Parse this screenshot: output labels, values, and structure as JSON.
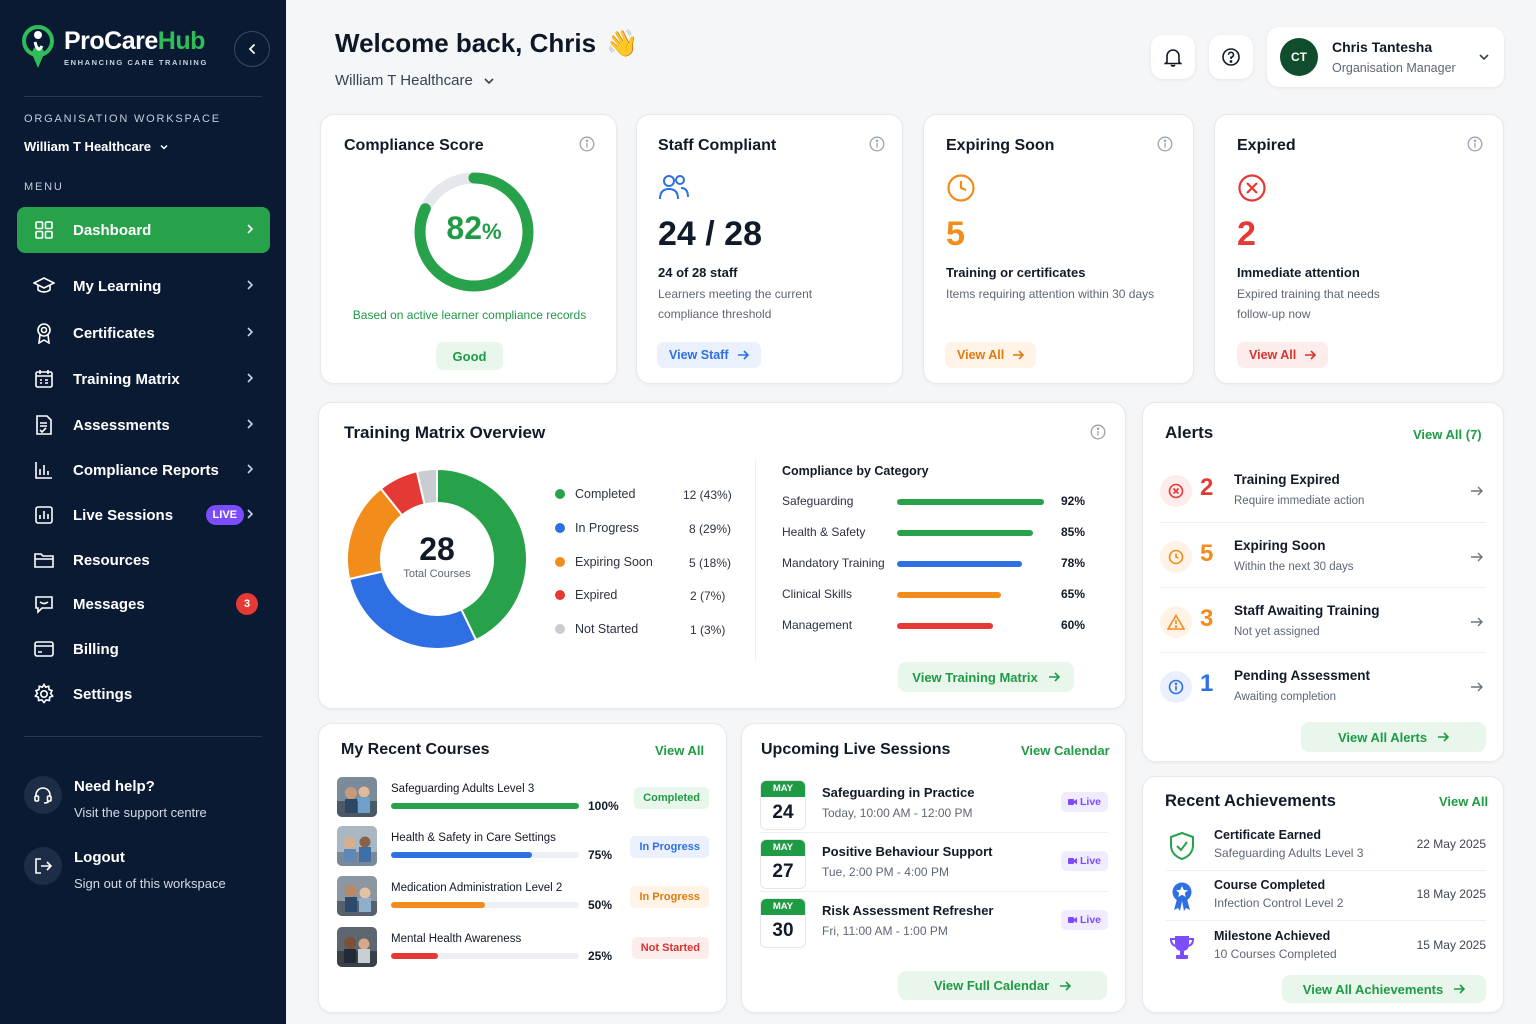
{
  "brand": {
    "name_part1": "ProCare",
    "name_part2": "Hub",
    "tagline": "ENHANCING CARE TRAINING",
    "color_primary": "#27a24a",
    "color_sidebar": "#0a1a33"
  },
  "sidebar": {
    "workspace_label": "ORGANISATION WORKSPACE",
    "workspace_name": "William T Healthcare",
    "menu_label": "MENU",
    "items": [
      {
        "label": "Dashboard",
        "icon": "grid-icon"
      },
      {
        "label": "My Learning",
        "icon": "graduation-cap-icon"
      },
      {
        "label": "Certificates",
        "icon": "award-icon"
      },
      {
        "label": "Training Matrix",
        "icon": "calendar-grid-icon"
      },
      {
        "label": "Assessments",
        "icon": "document-check-icon"
      },
      {
        "label": "Compliance Reports",
        "icon": "bar-chart-icon"
      },
      {
        "label": "Live Sessions",
        "icon": "live-chart-icon",
        "badge": "LIVE"
      },
      {
        "label": "Resources",
        "icon": "folder-icon"
      },
      {
        "label": "Messages",
        "icon": "message-icon",
        "badge": "3"
      },
      {
        "label": "Billing",
        "icon": "credit-card-icon"
      },
      {
        "label": "Settings",
        "icon": "gear-icon"
      }
    ],
    "help": {
      "title": "Need help?",
      "subtitle": "Visit the support centre"
    },
    "logout": {
      "title": "Logout",
      "subtitle": "Sign out of this workspace"
    }
  },
  "header": {
    "welcome": "Welcome back, Chris",
    "wave": "👋",
    "org": "William T Healthcare",
    "user": {
      "initials": "CT",
      "name": "Chris Tantesha",
      "role": "Organisation Manager"
    }
  },
  "kpis": {
    "compliance": {
      "title": "Compliance Score",
      "value": "82",
      "unit": "%",
      "fraction": 0.82,
      "note": "Based on active learner compliance records",
      "status": "Good"
    },
    "staff": {
      "title": "Staff Compliant",
      "value": "24 / 28",
      "sub": "24 of 28 staff",
      "desc": "Learners meeting the current compliance threshold",
      "button": "View Staff"
    },
    "expiring": {
      "title": "Expiring Soon",
      "value": "5",
      "sub": "Training or certificates",
      "desc": "Items requiring attention within 30 days",
      "button": "View All",
      "color": "#f28c1b"
    },
    "expired": {
      "title": "Expired",
      "value": "2",
      "sub": "Immediate attention",
      "desc": "Expired training that needs follow-up now",
      "button": "View All",
      "color": "#e53935"
    }
  },
  "matrix": {
    "title": "Training Matrix Overview",
    "total": "28",
    "total_label": "Total Courses",
    "legend": [
      {
        "label": "Completed",
        "value": "12 (43%)",
        "count": 12,
        "color": "#27a24a"
      },
      {
        "label": "In Progress",
        "value": "8 (29%)",
        "count": 8,
        "color": "#2f6fe4"
      },
      {
        "label": "Expiring Soon",
        "value": "5 (18%)",
        "count": 5,
        "color": "#f28c1b"
      },
      {
        "label": "Expired",
        "value": "2 (7%)",
        "count": 2,
        "color": "#e53935"
      },
      {
        "label": "Not Started",
        "value": "1 (3%)",
        "count": 1,
        "color": "#c9ccd1"
      }
    ],
    "category_title": "Compliance by Category",
    "categories": [
      {
        "name": "Safeguarding",
        "pct": "92%",
        "value": 92,
        "color": "#27a24a"
      },
      {
        "name": "Health & Safety",
        "pct": "85%",
        "value": 85,
        "color": "#27a24a"
      },
      {
        "name": "Mandatory Training",
        "pct": "78%",
        "value": 78,
        "color": "#2f6fe4"
      },
      {
        "name": "Clinical Skills",
        "pct": "65%",
        "value": 65,
        "color": "#f28c1b"
      },
      {
        "name": "Management",
        "pct": "60%",
        "value": 60,
        "color": "#e53935"
      }
    ],
    "button": "View Training Matrix"
  },
  "alerts": {
    "title": "Alerts",
    "view_all": "View All (7)",
    "items": [
      {
        "count": "2",
        "title": "Training Expired",
        "sub": "Require immediate action",
        "color": "#e53935",
        "bg": "#fdecec",
        "icon": "x-circle-icon"
      },
      {
        "count": "5",
        "title": "Expiring Soon",
        "sub": "Within the next 30 days",
        "color": "#f28c1b",
        "bg": "#fef3e6",
        "icon": "clock-icon"
      },
      {
        "count": "3",
        "title": "Staff Awaiting Training",
        "sub": "Not yet assigned",
        "color": "#f28c1b",
        "bg": "#fef3e6",
        "icon": "warning-icon"
      },
      {
        "count": "1",
        "title": "Pending Assessment",
        "sub": "Awaiting completion",
        "color": "#2f6fe4",
        "bg": "#eaf1fd",
        "icon": "info-icon"
      }
    ],
    "button": "View All Alerts"
  },
  "courses": {
    "title": "My Recent Courses",
    "view_all": "View All",
    "items": [
      {
        "name": "Safeguarding Adults Level 3",
        "pct": "100%",
        "value": 100,
        "color": "#27a24a",
        "status": "Completed",
        "status_color": "#1f9a45",
        "status_bg": "#e8f6ec"
      },
      {
        "name": "Health & Safety in Care Settings",
        "pct": "75%",
        "value": 75,
        "color": "#2f6fe4",
        "status": "In Progress",
        "status_color": "#2f6fe4",
        "status_bg": "#eaf1fd"
      },
      {
        "name": "Medication Administration Level 2",
        "pct": "50%",
        "value": 50,
        "color": "#f28c1b",
        "status": "In Progress",
        "status_color": "#e07a0c",
        "status_bg": "#fef3e6"
      },
      {
        "name": "Mental Health Awareness",
        "pct": "25%",
        "value": 25,
        "color": "#e53935",
        "status": "Not Started",
        "status_color": "#d63431",
        "status_bg": "#fdecec"
      }
    ]
  },
  "sessions": {
    "title": "Upcoming Live Sessions",
    "view_all": "View Calendar",
    "items": [
      {
        "month": "MAY",
        "day": "24",
        "title": "Safeguarding in Practice",
        "time": "Today, 10:00 AM - 12:00 PM",
        "badge": "Live"
      },
      {
        "month": "MAY",
        "day": "27",
        "title": "Positive Behaviour Support",
        "time": "Tue, 2:00 PM - 4:00 PM",
        "badge": "Live"
      },
      {
        "month": "MAY",
        "day": "30",
        "title": "Risk Assessment Refresher",
        "time": "Fri, 11:00 AM - 1:00 PM",
        "badge": "Live"
      }
    ],
    "button": "View Full Calendar"
  },
  "achievements": {
    "title": "Recent Achievements",
    "view_all": "View All",
    "items": [
      {
        "title": "Certificate Earned",
        "sub": "Safeguarding Adults Level 3",
        "date": "22 May 2025",
        "icon": "shield-check-icon"
      },
      {
        "title": "Course Completed",
        "sub": "Infection Control Level 2",
        "date": "18 May 2025",
        "icon": "medal-icon"
      },
      {
        "title": "Milestone Achieved",
        "sub": "10 Courses Completed",
        "date": "15 May 2025",
        "icon": "trophy-icon"
      }
    ],
    "button": "View All Achievements"
  }
}
